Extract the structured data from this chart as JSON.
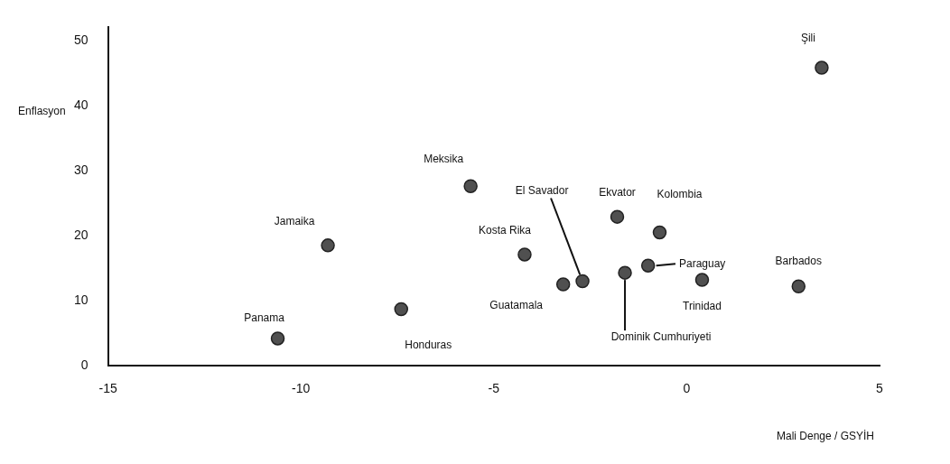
{
  "chart_data": {
    "type": "scatter",
    "xlabel": "Mali Denge / GSYİH",
    "ylabel": "Enflasyon",
    "x": [
      -10.6,
      -9.3,
      -7.4,
      -5.6,
      -4.2,
      -3.2,
      -2.7,
      -1.8,
      -1.6,
      -1.0,
      -0.7,
      0.4,
      2.9,
      3.5
    ],
    "series": [
      {
        "color": "#505050",
        "values": [
          4.2,
          18.5,
          8.7,
          27.6,
          17.1,
          12.5,
          13.0,
          22.9,
          14.3,
          15.4,
          20.5,
          13.2,
          12.2,
          45.8
        ]
      }
    ],
    "xlim": [
      -15,
      5
    ],
    "xticks": [
      -15,
      -10,
      -5,
      0,
      5
    ],
    "ylim": [
      0,
      52
    ],
    "yticks": [
      0,
      10,
      20,
      30,
      40,
      50
    ],
    "grid": false,
    "legend": false,
    "marker": "circle",
    "annotations": [
      {
        "text": "Panama",
        "x": -10.6,
        "y": 4.2
      },
      {
        "text": "Jamaika",
        "x": -9.3,
        "y": 18.5
      },
      {
        "text": "Honduras",
        "x": -7.4,
        "y": 8.7
      },
      {
        "text": "Meksika",
        "x": -5.6,
        "y": 27.6
      },
      {
        "text": "Kosta Rika",
        "x": -4.2,
        "y": 17.1
      },
      {
        "text": "Guatamala",
        "x": -3.2,
        "y": 12.5
      },
      {
        "text": "El Savador",
        "x": -2.7,
        "y": 13.0
      },
      {
        "text": "Ekvator",
        "x": -1.8,
        "y": 22.9
      },
      {
        "text": "Dominik Cumhuriyeti",
        "x": -1.6,
        "y": 14.3
      },
      {
        "text": "Paraguay",
        "x": -1.0,
        "y": 15.4
      },
      {
        "text": "Kolombia",
        "x": -0.7,
        "y": 20.5
      },
      {
        "text": "Trinidad",
        "x": 0.4,
        "y": 13.2
      },
      {
        "text": "Barbados",
        "x": 2.9,
        "y": 12.2
      },
      {
        "text": "Şili",
        "x": 3.5,
        "y": 45.8
      }
    ]
  }
}
